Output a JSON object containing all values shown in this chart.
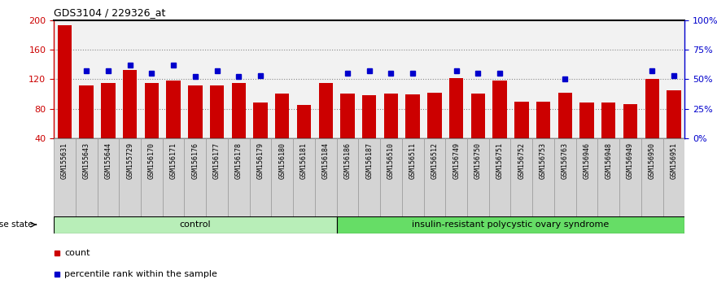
{
  "title": "GDS3104 / 229326_at",
  "samples": [
    "GSM155631",
    "GSM155643",
    "GSM155644",
    "GSM155729",
    "GSM156170",
    "GSM156171",
    "GSM156176",
    "GSM156177",
    "GSM156178",
    "GSM156179",
    "GSM156180",
    "GSM156181",
    "GSM156184",
    "GSM156186",
    "GSM156187",
    "GSM156510",
    "GSM156511",
    "GSM156512",
    "GSM156749",
    "GSM156750",
    "GSM156751",
    "GSM156752",
    "GSM156753",
    "GSM156763",
    "GSM156946",
    "GSM156948",
    "GSM156949",
    "GSM156950",
    "GSM156951"
  ],
  "bar_values": [
    193,
    112,
    115,
    133,
    115,
    118,
    112,
    112,
    115,
    88,
    100,
    85,
    115,
    100,
    98,
    100,
    99,
    102,
    122,
    100,
    118,
    90,
    90,
    102,
    88,
    88,
    86,
    120,
    105
  ],
  "percentile_values": [
    null,
    57,
    57,
    62,
    55,
    62,
    52,
    57,
    52,
    53,
    null,
    null,
    null,
    55,
    57,
    55,
    55,
    null,
    57,
    55,
    55,
    null,
    null,
    50,
    null,
    null,
    null,
    57,
    53
  ],
  "control_count": 13,
  "disease_count": 16,
  "bar_color": "#cc0000",
  "percentile_color": "#0000cc",
  "bar_bottom": 40,
  "ylim_left": [
    40,
    200
  ],
  "ylim_right": [
    0,
    100
  ],
  "yticks_left": [
    40,
    80,
    120,
    160,
    200
  ],
  "yticks_right": [
    0,
    25,
    50,
    75,
    100
  ],
  "ytick_labels_right": [
    "0%",
    "25%",
    "50%",
    "75%",
    "100%"
  ],
  "control_label": "control",
  "disease_label": "insulin-resistant polycystic ovary syndrome",
  "disease_state_label": "disease state",
  "legend_count_label": "count",
  "legend_percentile_label": "percentile rank within the sample",
  "control_bg": "#aaeaaa",
  "disease_bg": "#66cc66",
  "dotted_lines": [
    80,
    120,
    160
  ],
  "dotted_color": "#888888"
}
